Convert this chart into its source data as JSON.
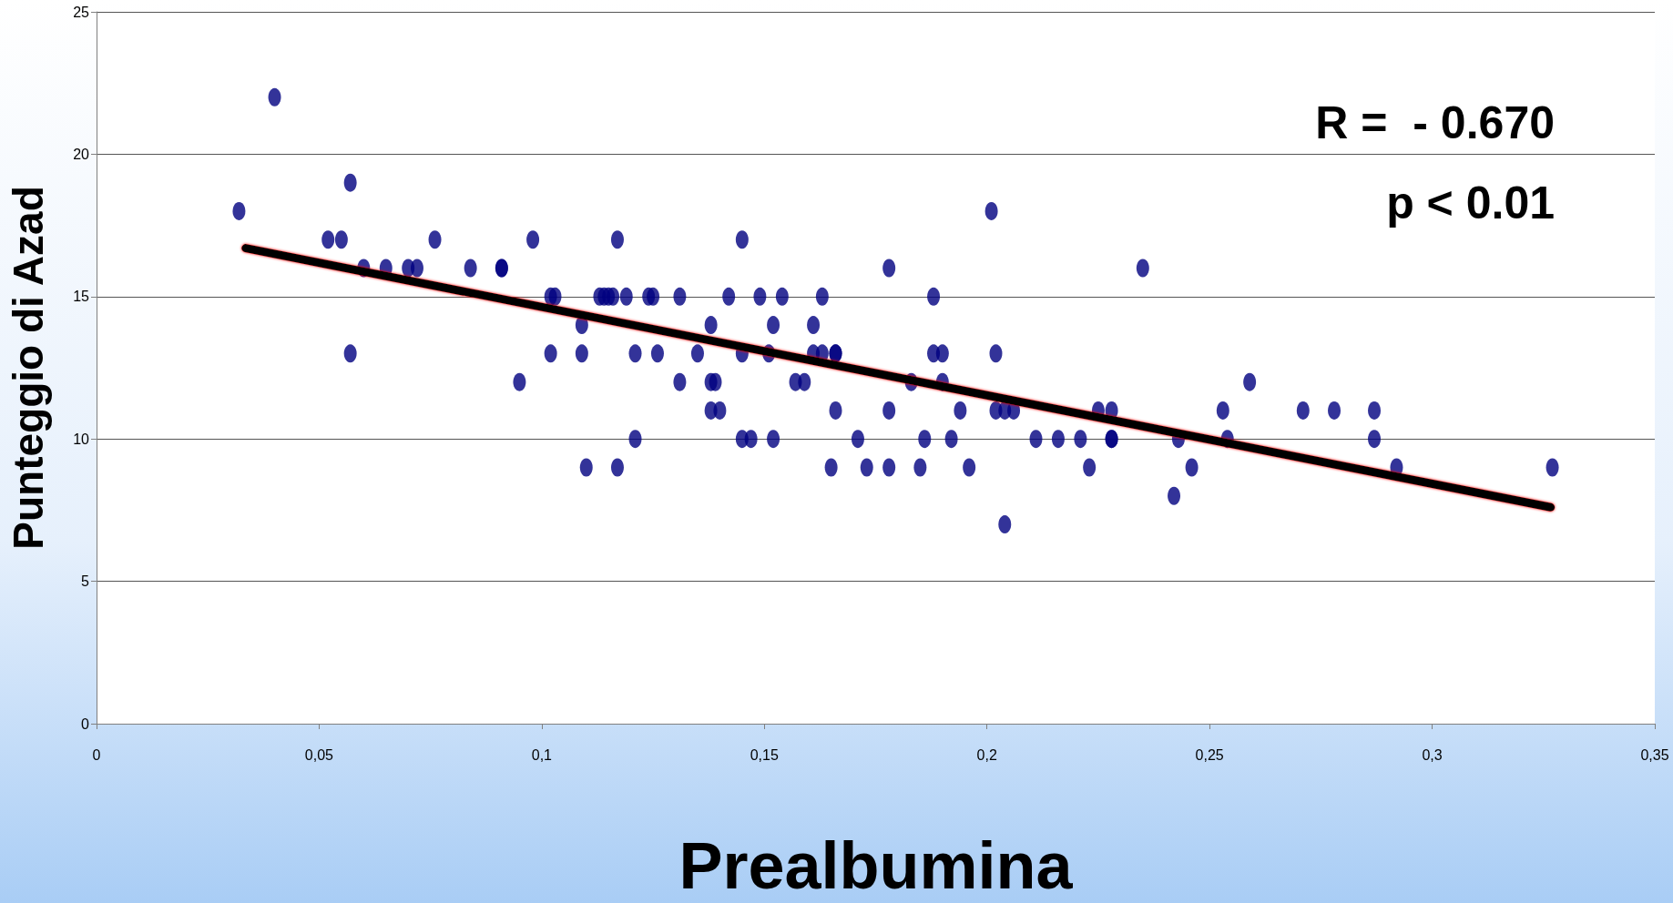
{
  "chart_data": {
    "type": "scatter",
    "xlabel": "Prealbumina",
    "ylabel": "Punteggio di Azad",
    "annotations": [
      "R =  - 0.670",
      "p < 0.01"
    ],
    "xlim": [
      0,
      0.35
    ],
    "xticks": [
      0,
      {
        "value": 0.05,
        "label": "0,05"
      },
      {
        "value": 0.1,
        "label": "0,1"
      },
      {
        "value": 0.15,
        "label": "0,15"
      },
      {
        "value": 0.2,
        "label": "0,2"
      },
      {
        "value": 0.25,
        "label": "0,25"
      },
      {
        "value": 0.3,
        "label": "0,3"
      },
      {
        "value": 0.35,
        "label": "0,35"
      }
    ],
    "ylim": [
      0,
      25
    ],
    "yticks": [
      0,
      5,
      10,
      15,
      20,
      25
    ],
    "grid": "y",
    "series": [
      {
        "color": "#000080",
        "marker": "circle",
        "x": [
          0.032,
          0.04,
          0.052,
          0.055,
          0.057,
          0.057,
          0.06,
          0.065,
          0.07,
          0.072,
          0.076,
          0.084,
          0.091,
          0.091,
          0.095,
          0.098,
          0.102,
          0.102,
          0.103,
          0.109,
          0.109,
          0.11,
          0.113,
          0.114,
          0.115,
          0.116,
          0.117,
          0.117,
          0.119,
          0.121,
          0.121,
          0.124,
          0.125,
          0.126,
          0.131,
          0.131,
          0.135,
          0.138,
          0.139,
          0.138,
          0.138,
          0.14,
          0.142,
          0.145,
          0.145,
          0.145,
          0.147,
          0.149,
          0.151,
          0.152,
          0.152,
          0.154,
          0.157,
          0.159,
          0.161,
          0.161,
          0.163,
          0.163,
          0.165,
          0.166,
          0.166,
          0.166,
          0.171,
          0.173,
          0.178,
          0.178,
          0.178,
          0.183,
          0.185,
          0.186,
          0.188,
          0.188,
          0.19,
          0.19,
          0.192,
          0.194,
          0.196,
          0.201,
          0.202,
          0.202,
          0.204,
          0.204,
          0.206,
          0.211,
          0.216,
          0.221,
          0.223,
          0.225,
          0.228,
          0.228,
          0.228,
          0.235,
          0.242,
          0.243,
          0.246,
          0.253,
          0.254,
          0.259,
          0.271,
          0.278,
          0.287,
          0.287,
          0.292,
          0.327
        ],
        "values": [
          18,
          22,
          17,
          17,
          19,
          13,
          16,
          16,
          16,
          16,
          17,
          16,
          16,
          16,
          12,
          17,
          15,
          13,
          15,
          14,
          13,
          9,
          15,
          15,
          15,
          15,
          17,
          9,
          15,
          10,
          13,
          15,
          15,
          13,
          15,
          12,
          13,
          12,
          12,
          14,
          11,
          11,
          15,
          17,
          13,
          10,
          10,
          15,
          13,
          14,
          10,
          15,
          12,
          12,
          14,
          13,
          15,
          13,
          9,
          13,
          13,
          11,
          10,
          9,
          16,
          11,
          9,
          12,
          9,
          10,
          13,
          15,
          13,
          12,
          10,
          11,
          9,
          18,
          11,
          13,
          11,
          7,
          11,
          10,
          10,
          10,
          9,
          11,
          10,
          10,
          11,
          16,
          8,
          10,
          9,
          11,
          10,
          12,
          11,
          11,
          11,
          10,
          9,
          9
        ]
      },
      {
        "type": "line",
        "color": "#000000",
        "marker": "none",
        "line_style": "solid",
        "x": [
          0.0335,
          0.3266
        ],
        "values": [
          16.7,
          7.6
        ]
      }
    ]
  }
}
